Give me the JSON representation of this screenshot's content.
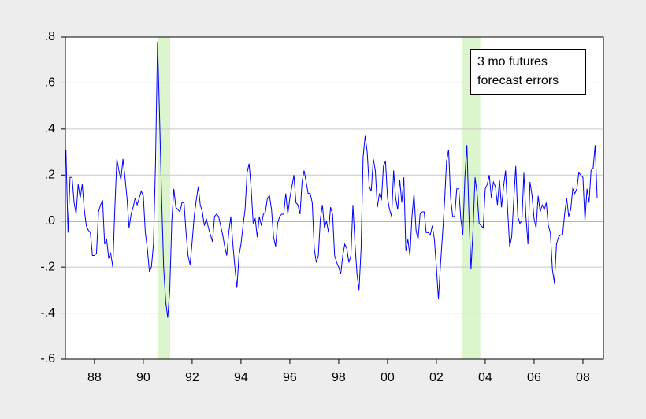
{
  "chart_data": {
    "type": "line",
    "series": [
      {
        "name": "3 mo futures forecast errors",
        "color": "#0000ff",
        "values": [
          0.31,
          -0.05,
          0.19,
          0.19,
          0.08,
          0.03,
          0.16,
          0.1,
          0.16,
          0.05,
          -0.02,
          -0.04,
          -0.05,
          -0.15,
          -0.15,
          -0.14,
          0.04,
          0.07,
          0.09,
          -0.1,
          -0.08,
          -0.16,
          -0.14,
          -0.2,
          0.05,
          0.27,
          0.22,
          0.18,
          0.27,
          0.19,
          0.1,
          -0.03,
          0.03,
          0.06,
          0.1,
          0.07,
          0.1,
          0.13,
          0.11,
          -0.05,
          -0.12,
          -0.22,
          -0.2,
          -0.1,
          0.25,
          0.78,
          0.45,
          0.1,
          -0.2,
          -0.35,
          -0.42,
          -0.3,
          0.0,
          0.14,
          0.06,
          0.05,
          0.04,
          0.08,
          0.08,
          -0.05,
          -0.15,
          -0.19,
          -0.09,
          0.02,
          0.09,
          0.15,
          0.07,
          0.04,
          -0.02,
          0.01,
          -0.03,
          -0.06,
          -0.09,
          0.02,
          0.03,
          0.02,
          -0.02,
          -0.06,
          -0.11,
          -0.15,
          -0.05,
          0.02,
          -0.1,
          -0.2,
          -0.29,
          -0.15,
          -0.1,
          -0.02,
          0.05,
          0.21,
          0.25,
          0.14,
          -0.01,
          0.01,
          -0.07,
          0.02,
          -0.02,
          0.03,
          0.04,
          0.1,
          0.11,
          0.05,
          -0.07,
          -0.11,
          -0.01,
          0.02,
          0.03,
          0.03,
          0.12,
          0.03,
          0.1,
          0.15,
          0.2,
          0.08,
          0.07,
          0.03,
          0.17,
          0.22,
          0.17,
          0.12,
          0.12,
          0.08,
          -0.12,
          -0.18,
          -0.15,
          0.01,
          0.07,
          -0.03,
          0.0,
          -0.05,
          0.06,
          0.03,
          -0.15,
          -0.18,
          -0.2,
          -0.23,
          -0.15,
          -0.1,
          -0.12,
          -0.18,
          -0.15,
          0.07,
          -0.1,
          -0.23,
          -0.3,
          -0.12,
          0.28,
          0.37,
          0.3,
          0.15,
          0.13,
          0.27,
          0.22,
          0.06,
          0.12,
          0.09,
          0.24,
          0.26,
          0.1,
          0.05,
          0.02,
          0.22,
          0.1,
          0.05,
          0.18,
          0.08,
          0.19,
          -0.13,
          -0.08,
          -0.15,
          0.02,
          0.12,
          -0.04,
          -0.08,
          0.03,
          0.04,
          0.04,
          -0.05,
          -0.05,
          -0.06,
          -0.02,
          -0.08,
          -0.2,
          -0.34,
          -0.19,
          -0.06,
          0.08,
          0.26,
          0.31,
          0.1,
          0.02,
          0.02,
          0.14,
          0.14,
          0.01,
          -0.06,
          0.19,
          0.33,
          0.03,
          -0.21,
          -0.04,
          0.19,
          0.12,
          -0.01,
          -0.02,
          -0.03,
          0.14,
          0.16,
          0.2,
          0.1,
          0.17,
          0.15,
          0.07,
          0.18,
          0.06,
          0.15,
          0.22,
          0.05,
          -0.11,
          -0.07,
          0.09,
          0.24,
          0.02,
          -0.01,
          0.0,
          0.21,
          0.02,
          -0.1,
          0.17,
          0.11,
          0.01,
          -0.03,
          0.11,
          0.04,
          0.07,
          0.05,
          0.08,
          -0.02,
          -0.05,
          -0.21,
          -0.27,
          -0.1,
          -0.07,
          -0.06,
          -0.06,
          0.03,
          0.1,
          0.02,
          0.05,
          0.14,
          0.12,
          0.14,
          0.21,
          0.2,
          0.19,
          0.0,
          0.14,
          0.08,
          0.22,
          0.23,
          0.33,
          0.1
        ]
      }
    ],
    "x": [
      1986.833,
      1986.917,
      1987,
      1987.083,
      1987.167,
      1987.25,
      1987.333,
      1987.417,
      1987.5,
      1987.583,
      1987.667,
      1987.75,
      1987.833,
      1987.917,
      1988,
      1988.083,
      1988.167,
      1988.25,
      1988.333,
      1988.417,
      1988.5,
      1988.583,
      1988.667,
      1988.75,
      1988.833,
      1988.917,
      1989,
      1989.083,
      1989.167,
      1989.25,
      1989.333,
      1989.417,
      1989.5,
      1989.583,
      1989.667,
      1989.75,
      1989.833,
      1989.917,
      1990,
      1990.083,
      1990.167,
      1990.25,
      1990.333,
      1990.417,
      1990.5,
      1990.583,
      1990.667,
      1990.75,
      1990.833,
      1990.917,
      1991,
      1991.083,
      1991.167,
      1991.25,
      1991.333,
      1991.417,
      1991.5,
      1991.583,
      1991.667,
      1991.75,
      1991.833,
      1991.917,
      1992,
      1992.083,
      1992.167,
      1992.25,
      1992.333,
      1992.417,
      1992.5,
      1992.583,
      1992.667,
      1992.75,
      1992.833,
      1992.917,
      1993,
      1993.083,
      1993.167,
      1993.25,
      1993.333,
      1993.417,
      1993.5,
      1993.583,
      1993.667,
      1993.75,
      1993.833,
      1993.917,
      1994,
      1994.083,
      1994.167,
      1994.25,
      1994.333,
      1994.417,
      1994.5,
      1994.583,
      1994.667,
      1994.75,
      1994.833,
      1994.917,
      1995,
      1995.083,
      1995.167,
      1995.25,
      1995.333,
      1995.417,
      1995.5,
      1995.583,
      1995.667,
      1995.75,
      1995.833,
      1995.917,
      1996,
      1996.083,
      1996.167,
      1996.25,
      1996.333,
      1996.417,
      1996.5,
      1996.583,
      1996.667,
      1996.75,
      1996.833,
      1996.917,
      1997,
      1997.083,
      1997.167,
      1997.25,
      1997.333,
      1997.417,
      1997.5,
      1997.583,
      1997.667,
      1997.75,
      1997.833,
      1997.917,
      1998,
      1998.083,
      1998.167,
      1998.25,
      1998.333,
      1998.417,
      1998.5,
      1998.583,
      1998.667,
      1998.75,
      1998.833,
      1998.917,
      1999,
      1999.083,
      1999.167,
      1999.25,
      1999.333,
      1999.417,
      1999.5,
      1999.583,
      1999.667,
      1999.75,
      1999.833,
      1999.917,
      2000,
      2000.083,
      2000.167,
      2000.25,
      2000.333,
      2000.417,
      2000.5,
      2000.583,
      2000.667,
      2000.75,
      2000.833,
      2000.917,
      2001,
      2001.083,
      2001.167,
      2001.25,
      2001.333,
      2001.417,
      2001.5,
      2001.583,
      2001.667,
      2001.75,
      2001.833,
      2001.917,
      2002,
      2002.083,
      2002.167,
      2002.25,
      2002.333,
      2002.417,
      2002.5,
      2002.583,
      2002.667,
      2002.75,
      2002.833,
      2002.917,
      2003,
      2003.083,
      2003.167,
      2003.25,
      2003.333,
      2003.417,
      2003.5,
      2003.583,
      2003.667,
      2003.75,
      2003.833,
      2003.917,
      2004,
      2004.083,
      2004.167,
      2004.25,
      2004.333,
      2004.417,
      2004.5,
      2004.583,
      2004.667,
      2004.75,
      2004.833,
      2004.917,
      2005,
      2005.083,
      2005.167,
      2005.25,
      2005.333,
      2005.417,
      2005.5,
      2005.583,
      2005.667,
      2005.75,
      2005.833,
      2005.917,
      2006,
      2006.083,
      2006.167,
      2006.25,
      2006.333,
      2006.417,
      2006.5,
      2006.583,
      2006.667,
      2006.75,
      2006.833,
      2006.917,
      2007,
      2007.083,
      2007.167,
      2007.25,
      2007.333,
      2007.417,
      2007.5,
      2007.583,
      2007.667,
      2007.75,
      2007.833,
      2007.917,
      2008,
      2008.083,
      2008.167,
      2008.25,
      2008.333,
      2008.417,
      2008.5,
      2008.583
    ],
    "xlim": [
      1986.81,
      2008.84
    ],
    "xticks": [
      {
        "value": 1988,
        "label": "88"
      },
      {
        "value": 1990,
        "label": "90"
      },
      {
        "value": 1992,
        "label": "92"
      },
      {
        "value": 1994,
        "label": "94"
      },
      {
        "value": 1996,
        "label": "96"
      },
      {
        "value": 1998,
        "label": "98"
      },
      {
        "value": 2000,
        "label": "00"
      },
      {
        "value": 2002,
        "label": "02"
      },
      {
        "value": 2004,
        "label": "04"
      },
      {
        "value": 2006,
        "label": "06"
      },
      {
        "value": 2008,
        "label": "08"
      }
    ],
    "ylim": [
      -0.6,
      0.8
    ],
    "yticks": [
      {
        "value": 0.8,
        "label": ".8"
      },
      {
        "value": 0.6,
        "label": ".6"
      },
      {
        "value": 0.4,
        "label": ".4"
      },
      {
        "value": 0.2,
        "label": ".2"
      },
      {
        "value": 0,
        "label": ".0"
      },
      {
        "value": -0.2,
        "label": "-.2"
      },
      {
        "value": -0.4,
        "label": "-.4"
      },
      {
        "value": -0.6,
        "label": "-.6"
      }
    ],
    "shaded_regions": [
      [
        1990.58,
        1991.1
      ],
      [
        2003.03,
        2003.8
      ]
    ],
    "shade_color": "#dcf5cc",
    "grid": true,
    "zero_line": true
  }
}
